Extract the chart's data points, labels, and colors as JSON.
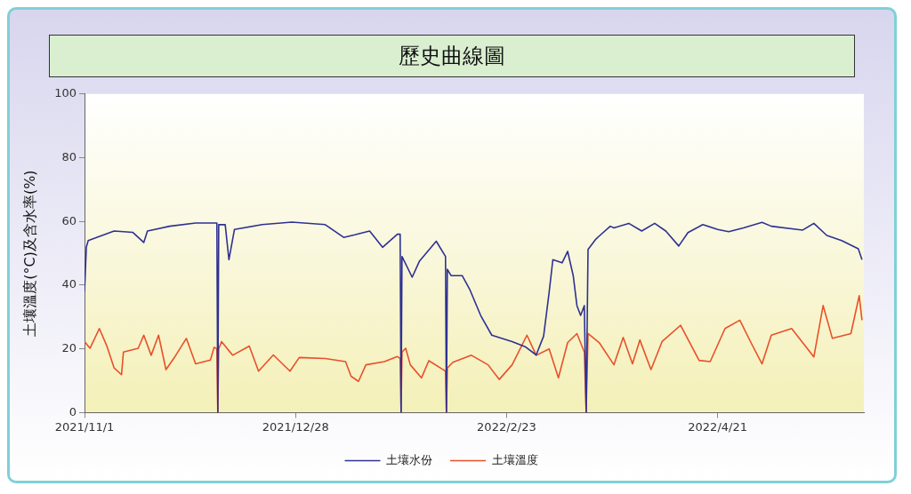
{
  "chart_data": {
    "type": "line",
    "title": "歷史曲線圖",
    "ylabel": "土壤溫度(°C)及含水率(%)",
    "xlim": [
      "2021-11-01",
      "2022-05-30T12:00"
    ],
    "xticks": [
      {
        "value": "2021-11-01",
        "label": "2021/11/1"
      },
      {
        "value": "2021-12-28",
        "label": "2021/12/28"
      },
      {
        "value": "2022-02-23",
        "label": "2022/2/23"
      },
      {
        "value": "2022-04-21",
        "label": "2022/4/21"
      }
    ],
    "ylim": [
      0,
      100
    ],
    "yticks": [
      0,
      20,
      40,
      60,
      80,
      100
    ],
    "grid": false,
    "legend": "bottom",
    "marker": "none",
    "line_style": "solid",
    "series": [
      {
        "name": "土壤水份",
        "color": "#2e3192",
        "x": [
          "2021-11-01",
          "2021-11-01T12:00",
          "2021-11-02",
          "2021-11-09",
          "2021-11-14",
          "2021-11-17",
          "2021-11-18",
          "2021-11-24",
          "2021-12-01",
          "2021-12-06T12:00",
          "2021-12-06T18:00",
          "2021-12-07T00:00",
          "2021-12-07T06:00",
          "2021-12-09",
          "2021-12-10",
          "2021-12-11T12:00",
          "2021-12-19",
          "2021-12-27",
          "2022-01-05",
          "2022-01-10",
          "2022-01-13",
          "2022-01-17",
          "2022-01-20T12:00",
          "2022-01-24T12:00",
          "2022-01-25T06:00",
          "2022-01-25T12:00",
          "2022-01-25T18:00",
          "2022-01-28T12:00",
          "2022-01-30T12:00",
          "2022-02-04",
          "2022-02-06T12:00",
          "2022-02-06T18:00",
          "2022-02-07",
          "2022-02-08",
          "2022-02-11",
          "2022-02-13",
          "2022-02-16",
          "2022-02-19",
          "2022-02-24T12:00",
          "2022-02-28",
          "2022-03-03",
          "2022-03-05",
          "2022-03-06T12:00",
          "2022-03-07T12:00",
          "2022-03-10",
          "2022-03-11T12:00",
          "2022-03-13",
          "2022-03-14",
          "2022-03-15",
          "2022-03-16",
          "2022-03-16T12:00",
          "2022-03-17",
          "2022-03-19",
          "2022-03-20",
          "2022-03-23",
          "2022-03-24",
          "2022-03-28",
          "2022-03-31T12:00",
          "2022-04-04",
          "2022-04-07",
          "2022-04-10T12:00",
          "2022-04-13",
          "2022-04-17",
          "2022-04-21",
          "2022-04-24",
          "2022-04-28",
          "2022-05-03",
          "2022-05-05T12:00",
          "2022-05-14",
          "2022-05-17",
          "2022-05-20T12:00",
          "2022-05-24T12:00",
          "2022-05-29",
          "2022-05-30"
        ],
        "values": [
          38,
          52,
          54,
          57,
          56.6,
          53.4,
          57,
          58.5,
          59.5,
          59.5,
          59.5,
          0,
          59,
          59,
          48,
          57.5,
          59,
          59.8,
          59,
          55,
          55.8,
          57,
          51.9,
          56,
          56,
          0,
          49,
          42.5,
          47.6,
          53.8,
          49,
          0,
          45,
          43,
          43,
          38.8,
          30.5,
          24.3,
          22.3,
          20.7,
          18.1,
          24,
          37.8,
          48,
          47,
          50.6,
          43,
          33.6,
          30.5,
          33.6,
          0,
          51.2,
          54.3,
          55.4,
          58.5,
          58,
          59.4,
          57,
          59.4,
          57,
          52.3,
          56.5,
          59,
          57.5,
          56.8,
          58,
          59.7,
          58.5,
          57.3,
          59.4,
          55.6,
          54,
          51.4,
          48
        ]
      },
      {
        "name": "土壤溫度",
        "color": "#e8502a",
        "x": [
          "2021-11-01",
          "2021-11-02T12:00",
          "2021-11-05",
          "2021-11-07",
          "2021-11-09",
          "2021-11-11",
          "2021-11-11T12:00",
          "2021-11-15T12:00",
          "2021-11-17",
          "2021-11-19",
          "2021-11-21",
          "2021-11-23",
          "2021-11-25T12:00",
          "2021-11-28T12:00",
          "2021-12-01",
          "2021-12-05",
          "2021-12-06",
          "2021-12-06T18:00",
          "2021-12-07T00:00",
          "2021-12-07T06:00",
          "2021-12-08",
          "2021-12-11",
          "2021-12-15T12:00",
          "2021-12-18",
          "2021-12-22",
          "2021-12-26T12:00",
          "2021-12-29",
          "2022-01-05",
          "2022-01-10T12:00",
          "2022-01-12",
          "2022-01-14",
          "2022-01-16",
          "2022-01-21",
          "2022-01-24T12:00",
          "2022-01-25T06:00",
          "2022-01-25T12:00",
          "2022-01-25T18:00",
          "2022-01-26T18:00",
          "2022-01-28",
          "2022-01-31",
          "2022-02-02",
          "2022-02-06",
          "2022-02-06T12:00",
          "2022-02-06T18:00",
          "2022-02-07",
          "2022-02-08T12:00",
          "2022-02-13T12:00",
          "2022-02-18",
          "2022-02-21",
          "2022-02-24T12:00",
          "2022-02-28T12:00",
          "2022-03-03",
          "2022-03-06T12:00",
          "2022-03-09",
          "2022-03-11T12:00",
          "2022-03-14",
          "2022-03-16",
          "2022-03-16T12:00",
          "2022-03-17",
          "2022-03-20",
          "2022-03-24",
          "2022-03-26T12:00",
          "2022-03-29",
          "2022-03-31",
          "2022-04-03",
          "2022-04-06",
          "2022-04-11",
          "2022-04-16",
          "2022-04-19",
          "2022-04-23",
          "2022-04-27",
          "2022-04-30",
          "2022-05-03",
          "2022-05-05T12:00",
          "2022-05-11",
          "2022-05-17",
          "2022-05-19T12:00",
          "2022-05-22",
          "2022-05-27",
          "2022-05-29T06:00",
          "2022-05-30"
        ],
        "values": [
          22.3,
          20.2,
          26.4,
          21,
          14,
          11.9,
          19,
          20.2,
          24.3,
          18,
          24.3,
          13.5,
          17.7,
          23.3,
          15.3,
          16.5,
          20.5,
          20,
          0,
          20,
          22.3,
          18,
          20.9,
          13,
          18.1,
          13,
          17.3,
          17,
          16,
          11.4,
          9.8,
          15,
          16,
          17.6,
          17,
          0,
          19,
          20.2,
          15,
          10.9,
          16.3,
          13.4,
          13,
          0,
          14,
          15.8,
          18,
          15,
          10.4,
          15,
          24.3,
          18,
          20,
          10.9,
          22,
          24.8,
          19,
          0,
          24.8,
          22,
          15,
          23.6,
          15.3,
          22.8,
          13.5,
          22.3,
          27.4,
          16.4,
          16,
          26.4,
          29,
          22,
          15.3,
          24.3,
          26.4,
          17.5,
          33.6,
          23.3,
          24.8,
          36.7,
          29
        ]
      }
    ]
  }
}
